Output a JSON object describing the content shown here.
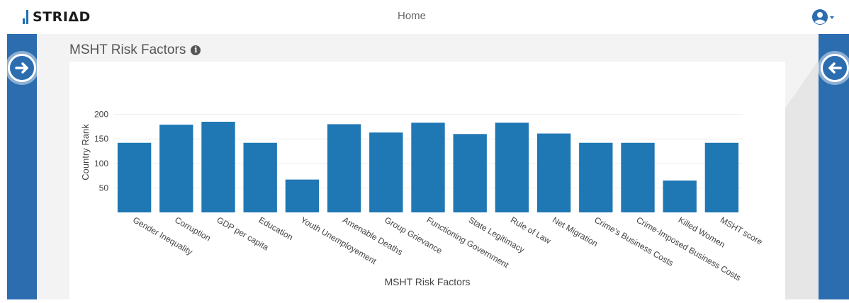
{
  "header": {
    "logo_text": "STRIΔD",
    "nav_home": "Home",
    "user_icon": "user-circle-icon",
    "caret_icon": "caret-down-icon"
  },
  "panel": {
    "title": "MSHT Risk Factors",
    "info_icon": "info-circle-icon"
  },
  "side_nav": {
    "left_icon": "arrow-right-circle-icon",
    "right_icon": "arrow-left-circle-icon"
  },
  "colors": {
    "accent": "#2c6db0",
    "bar": "#1f77b4"
  },
  "chart_data": {
    "type": "bar",
    "title": "",
    "xlabel": "MSHT Risk Factors",
    "ylabel": "Country Rank",
    "ylim": [
      0,
      205
    ],
    "yticks": [
      50,
      100,
      150,
      200
    ],
    "grid": true,
    "categories": [
      "Gender Inequality",
      "Corruption",
      "GDP per capita",
      "Education",
      "Youth Unemployement",
      "Amenable Deaths",
      "Group Grievance",
      "Functioning Government",
      "State Legitimacy",
      "Rule of Law",
      "Net Migration",
      "Crime's Business Costs",
      "Crime-Imposed Business Costs",
      "Killed Women",
      "MSHT score"
    ],
    "values": [
      142,
      179,
      185,
      142,
      67,
      180,
      163,
      183,
      160,
      183,
      161,
      142,
      142,
      65,
      142
    ]
  }
}
